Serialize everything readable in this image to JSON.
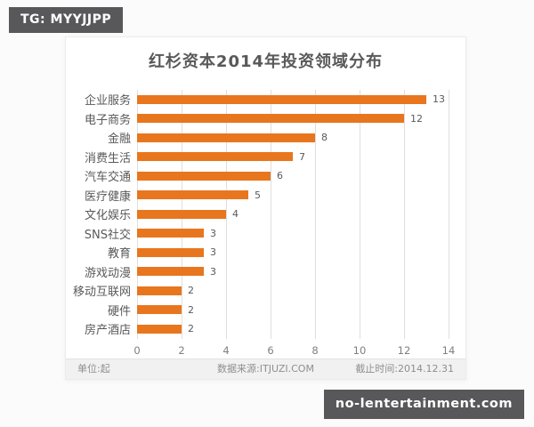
{
  "watermarks": {
    "top": "TG: MYYJJPP",
    "bottom": "no-lentertainment.com"
  },
  "colors": {
    "bar": "#E8761E",
    "badge_bg": "#58585A",
    "title_text": "#595959",
    "gridline": "#DFDFDF"
  },
  "chart_data": {
    "type": "bar",
    "orientation": "horizontal",
    "title": "红杉资本2014年投资领域分布",
    "categories": [
      "企业服务",
      "电子商务",
      "金融",
      "消费生活",
      "汽车交通",
      "医疗健康",
      "文化娱乐",
      "SNS社交",
      "教育",
      "游戏动漫",
      "移动互联网",
      "硬件",
      "房产酒店"
    ],
    "values": [
      13,
      12,
      8,
      7,
      6,
      5,
      4,
      3,
      3,
      3,
      2,
      2,
      2
    ],
    "xlabel": "",
    "ylabel": "",
    "xlim": [
      0,
      14
    ],
    "xticks": [
      0,
      2,
      4,
      6,
      8,
      10,
      12,
      14
    ],
    "grid": true,
    "value_labels": true,
    "legend": false,
    "footer": {
      "unit": "单位:起",
      "source": "数据来源:ITJUZI.COM",
      "deadline": "截止时间:2014.12.31"
    }
  }
}
